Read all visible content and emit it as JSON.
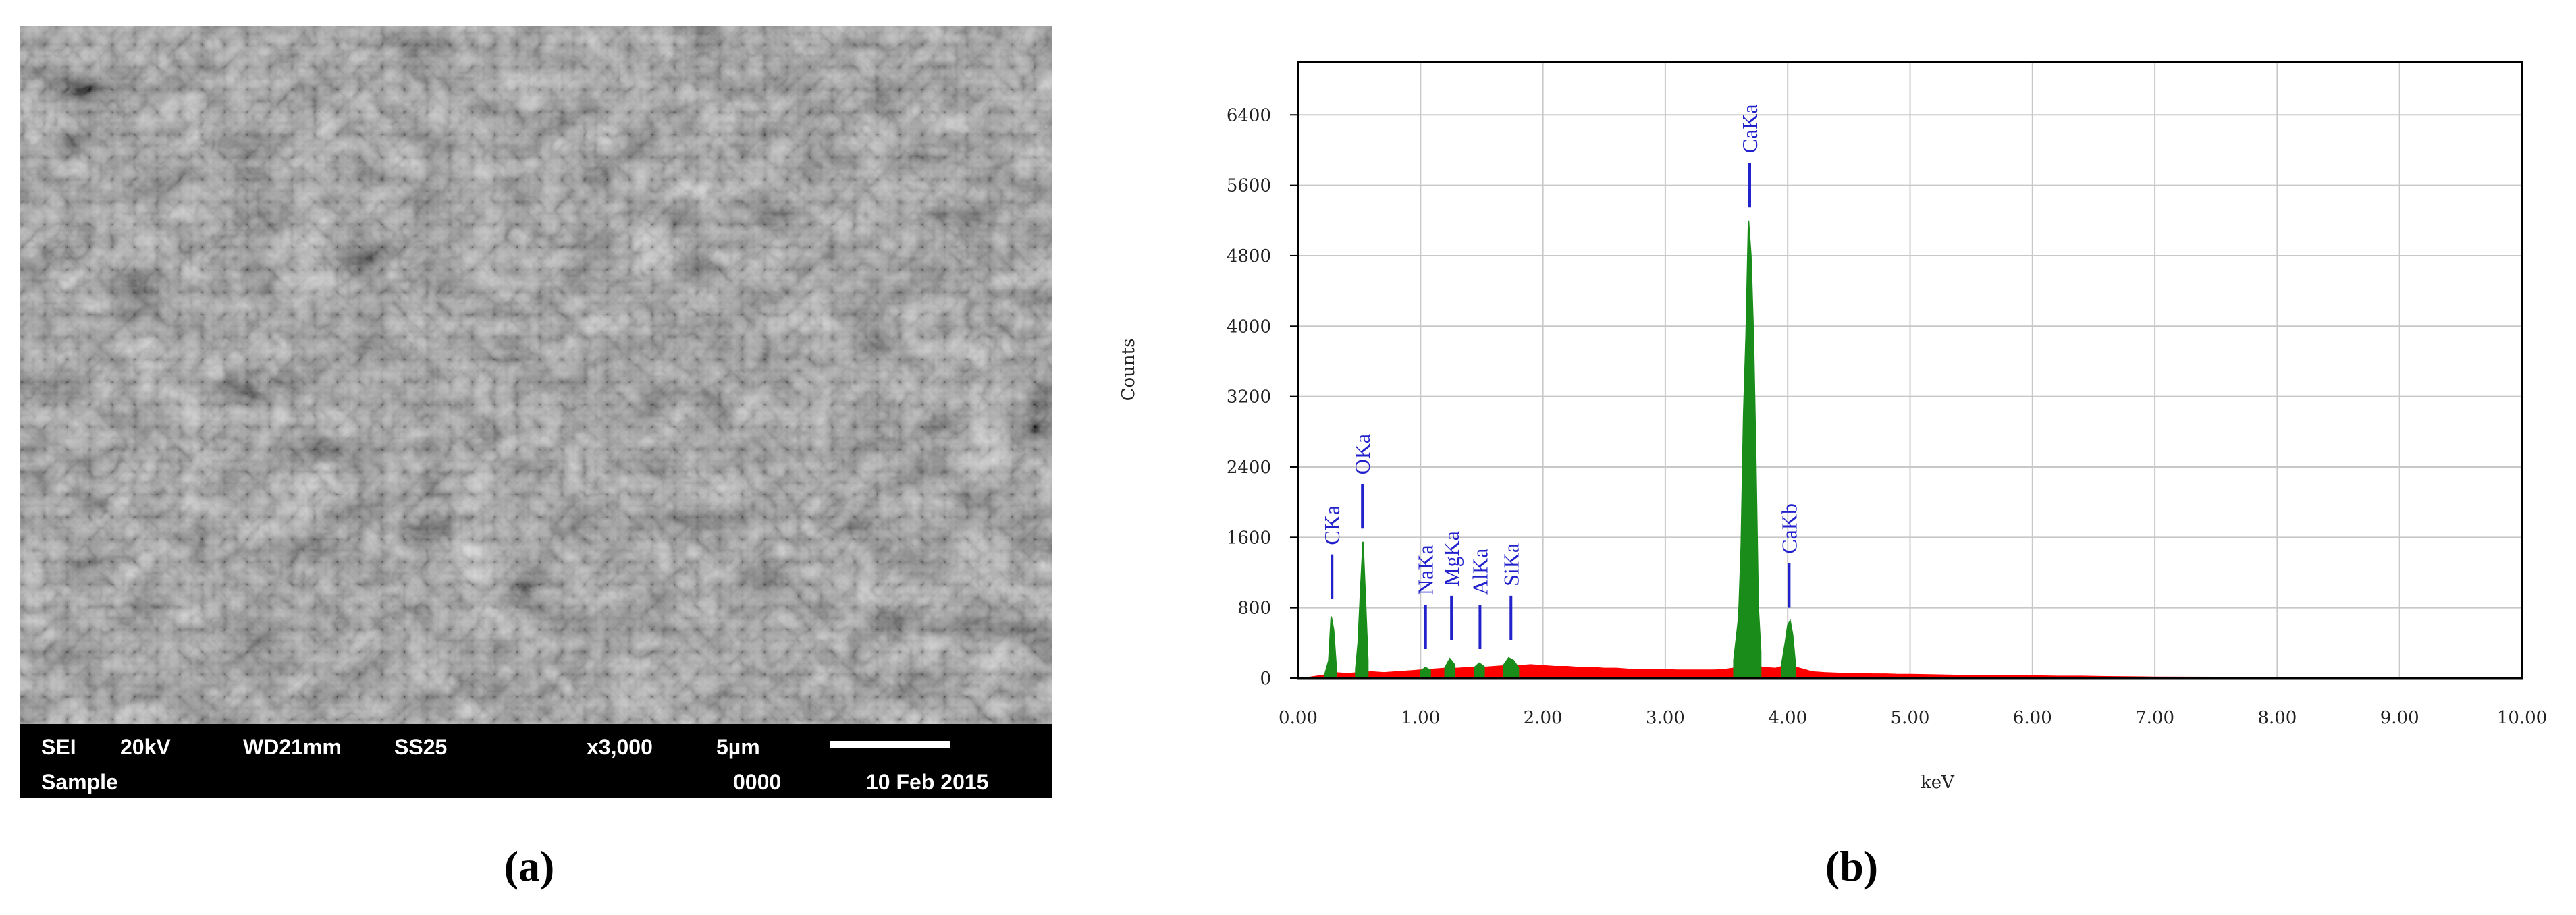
{
  "panel_a": {
    "caption": "(a)",
    "info_bar": [
      "SEI",
      "20kV",
      "WD21mm",
      "SS25",
      "x3,000",
      "5µm",
      "Sample",
      "0000",
      "10 Feb 2015"
    ]
  },
  "chart_data": {
    "type": "area",
    "caption": "(b)",
    "x_label": "keV",
    "y_label": "Counts",
    "xlim": [
      0,
      10
    ],
    "ylim": [
      0,
      7000
    ],
    "xticks": [
      {
        "value": 0,
        "label": "0.00"
      },
      {
        "value": 1,
        "label": "1.00"
      },
      {
        "value": 2,
        "label": "2.00"
      },
      {
        "value": 3,
        "label": "3.00"
      },
      {
        "value": 4,
        "label": "4.00"
      },
      {
        "value": 5,
        "label": "5.00"
      },
      {
        "value": 6,
        "label": "6.00"
      },
      {
        "value": 7,
        "label": "7.00"
      },
      {
        "value": 8,
        "label": "8.00"
      },
      {
        "value": 9,
        "label": "9.00"
      },
      {
        "value": 10,
        "label": "10.00"
      }
    ],
    "yticks": [
      0,
      800,
      1600,
      2400,
      3200,
      4000,
      4800,
      5600,
      6400
    ],
    "grid": true,
    "series": [
      {
        "color": "#ff0000",
        "x": [
          0.1,
          0.2,
          0.3,
          0.4,
          0.5,
          0.6,
          0.7,
          0.8,
          0.9,
          1.0,
          1.1,
          1.2,
          1.3,
          1.4,
          1.5,
          1.6,
          1.7,
          1.8,
          1.9,
          2.0,
          2.1,
          2.2,
          2.3,
          2.4,
          2.5,
          2.6,
          2.7,
          2.8,
          2.9,
          3.0,
          3.1,
          3.2,
          3.3,
          3.4,
          3.5,
          3.6,
          3.7,
          3.8,
          3.9,
          4.0,
          4.1,
          4.2,
          4.3,
          4.4,
          4.5,
          4.6,
          4.7,
          4.8,
          4.9,
          5.0,
          5.2,
          5.4,
          5.6,
          5.8,
          6.0,
          6.2,
          6.4,
          6.6,
          7.0,
          7.5,
          8.0,
          8.5,
          9.0,
          9.5,
          10.0
        ],
        "values": [
          10,
          30,
          60,
          50,
          60,
          70,
          60,
          70,
          80,
          90,
          100,
          110,
          110,
          120,
          120,
          130,
          140,
          140,
          150,
          140,
          130,
          130,
          120,
          120,
          110,
          110,
          100,
          100,
          100,
          95,
          90,
          90,
          90,
          90,
          100,
          120,
          150,
          120,
          110,
          150,
          110,
          70,
          60,
          55,
          50,
          50,
          45,
          45,
          40,
          40,
          35,
          30,
          30,
          25,
          25,
          20,
          20,
          15,
          10,
          8,
          6,
          5,
          4,
          3,
          2
        ]
      },
      {
        "color": "#1a8c1a",
        "x": [
          0.22,
          0.25,
          0.27,
          0.29,
          0.31,
          0.4,
          0.47,
          0.49,
          0.51,
          0.53,
          0.55,
          0.57,
          0.8,
          1.0,
          1.04,
          1.08,
          1.14,
          1.2,
          1.24,
          1.28,
          1.36,
          1.44,
          1.48,
          1.52,
          1.6,
          1.68,
          1.72,
          1.76,
          1.8,
          2.5,
          3.56,
          3.6,
          3.62,
          3.64,
          3.66,
          3.68,
          3.7,
          3.72,
          3.74,
          3.76,
          3.78,
          3.87,
          3.95,
          3.98,
          4.0,
          4.02,
          4.04,
          4.06
        ],
        "values": [
          50,
          200,
          700,
          550,
          150,
          null,
          100,
          400,
          1000,
          1550,
          900,
          200,
          null,
          80,
          120,
          90,
          null,
          120,
          220,
          150,
          null,
          120,
          170,
          130,
          null,
          150,
          230,
          200,
          120,
          null,
          200,
          700,
          1500,
          3000,
          3900,
          5200,
          4800,
          3900,
          2500,
          800,
          300,
          null,
          150,
          400,
          600,
          650,
          500,
          200
        ]
      }
    ],
    "annotations": [
      {
        "text": "CKa",
        "x": 0.277,
        "y": 900
      },
      {
        "text": "OKa",
        "x": 0.525,
        "y": 1700
      },
      {
        "text": "NaKa",
        "x": 1.041,
        "y": 330
      },
      {
        "text": "MgKa",
        "x": 1.253,
        "y": 430
      },
      {
        "text": "AlKa",
        "x": 1.486,
        "y": 330
      },
      {
        "text": "SiKa",
        "x": 1.739,
        "y": 430
      },
      {
        "text": "CaKa",
        "x": 3.69,
        "y": 5350
      },
      {
        "text": "CaKb",
        "x": 4.012,
        "y": 800
      }
    ]
  }
}
